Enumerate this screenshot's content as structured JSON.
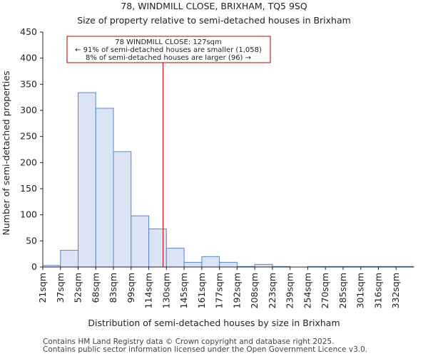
{
  "chart_data": {
    "type": "bar",
    "title": "78, WINDMILL CLOSE, BRIXHAM, TQ5 9SQ",
    "subtitle": "Size of property relative to semi-detached houses in Brixham",
    "xlabel": "Distribution of semi-detached houses by size in Brixham",
    "ylabel": "Number of semi-detached properties",
    "categories": [
      "21sqm",
      "37sqm",
      "52sqm",
      "68sqm",
      "83sqm",
      "99sqm",
      "114sqm",
      "130sqm",
      "145sqm",
      "161sqm",
      "177sqm",
      "192sqm",
      "208sqm",
      "223sqm",
      "239sqm",
      "254sqm",
      "270sqm",
      "285sqm",
      "301sqm",
      "316sqm",
      "332sqm"
    ],
    "values": [
      3,
      32,
      334,
      304,
      221,
      98,
      73,
      36,
      9,
      20,
      9,
      1,
      5,
      1,
      0,
      1,
      1,
      1,
      1,
      1,
      1
    ],
    "ylim": [
      0,
      450
    ],
    "yticks": [
      0,
      50,
      100,
      150,
      200,
      250,
      300,
      350,
      400,
      450
    ],
    "bar_fill": "#dbe4f4",
    "bar_edge": "#5b87c5",
    "marker": {
      "value_bin_fraction": 6.81,
      "color": "#aa0000"
    },
    "annotation": {
      "line1": "78 WINDMILL CLOSE: 127sqm",
      "line2": "← 91% of semi-detached houses are smaller (1,058)",
      "line3": "8% of semi-detached houses are larger (96) →"
    }
  },
  "footer": {
    "line1": "Contains HM Land Registry data © Crown copyright and database right 2025.",
    "line2": "Contains public sector information licensed under the Open Government Licence v3.0."
  }
}
